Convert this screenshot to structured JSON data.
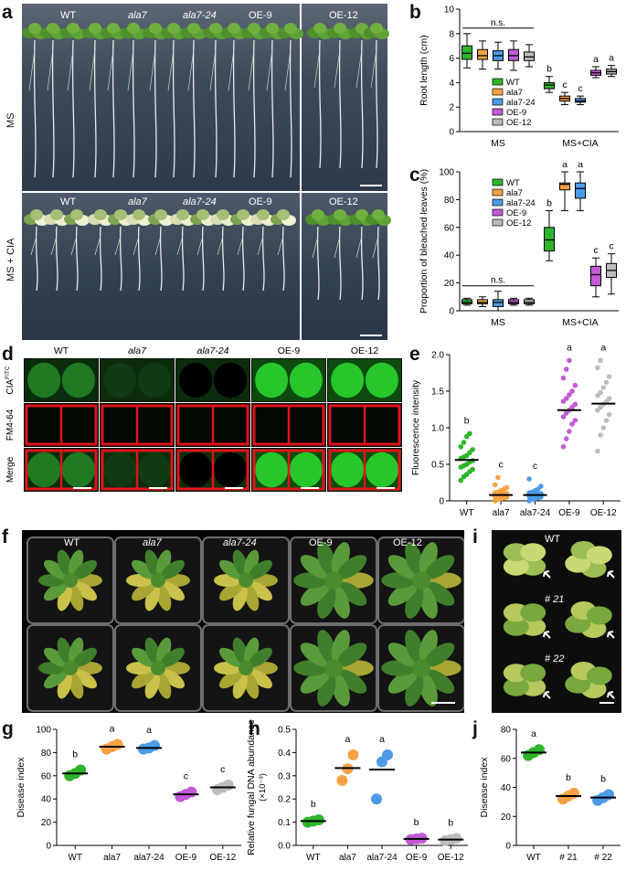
{
  "panel_labels": [
    "a",
    "b",
    "c",
    "d",
    "e",
    "f",
    "g",
    "h",
    "i",
    "j"
  ],
  "genotypes": [
    "WT",
    "ala7",
    "ala7-24",
    "OE-9",
    "OE-12"
  ],
  "panel_a": {
    "rows": [
      "MS",
      "MS + CIA"
    ],
    "columns": [
      "WT",
      "ala7",
      "ala7-24",
      "OE-9",
      "OE-12"
    ]
  },
  "panel_d": {
    "columns": [
      "WT",
      "ala7",
      "ala7-24",
      "OE-9",
      "OE-12"
    ],
    "rows": [
      "CIA",
      "FM4-64",
      "Merge"
    ],
    "row0_sup": "FITC"
  },
  "panel_f": {
    "columns": [
      "WT",
      "ala7",
      "ala7-24",
      "OE-9",
      "OE-12"
    ]
  },
  "panel_i": {
    "labels": [
      "WT",
      "# 21",
      "# 22"
    ]
  },
  "colors": {
    "WT": "#2db52a",
    "ala7": "#f7a144",
    "ala7-24": "#4d9be8",
    "OE-9": "#c25bd6",
    "OE-12": "#bdbdbd"
  },
  "chart_data": [
    {
      "id": "b",
      "type": "box",
      "ylabel": "Root length (cm)",
      "ylim": [
        0,
        10
      ],
      "yticks": [
        0,
        2,
        4,
        6,
        8,
        10
      ],
      "groups": [
        "MS",
        "MS+CIA"
      ],
      "legend": [
        "WT",
        "ala7",
        "ala7-24",
        "OE-9",
        "OE-12"
      ],
      "ns_label": "n.s.",
      "series": [
        {
          "group": "MS",
          "name": "WT",
          "min": 5.2,
          "q1": 5.9,
          "median": 6.4,
          "q3": 7.0,
          "max": 8.0,
          "letter": ""
        },
        {
          "group": "MS",
          "name": "ala7",
          "min": 5.1,
          "q1": 5.9,
          "median": 6.2,
          "q3": 6.7,
          "max": 7.4,
          "letter": ""
        },
        {
          "group": "MS",
          "name": "ala7-24",
          "min": 5.1,
          "q1": 5.8,
          "median": 6.2,
          "q3": 6.6,
          "max": 7.3,
          "letter": ""
        },
        {
          "group": "MS",
          "name": "OE-9",
          "min": 5.0,
          "q1": 5.8,
          "median": 6.2,
          "q3": 6.7,
          "max": 7.4,
          "letter": ""
        },
        {
          "group": "MS",
          "name": "OE-12",
          "min": 5.3,
          "q1": 5.8,
          "median": 6.1,
          "q3": 6.5,
          "max": 7.1,
          "letter": ""
        },
        {
          "group": "MS+CIA",
          "name": "WT",
          "min": 3.2,
          "q1": 3.5,
          "median": 3.8,
          "q3": 4.0,
          "max": 4.5,
          "letter": "b"
        },
        {
          "group": "MS+CIA",
          "name": "ala7",
          "min": 2.2,
          "q1": 2.5,
          "median": 2.7,
          "q3": 2.9,
          "max": 3.2,
          "letter": "c"
        },
        {
          "group": "MS+CIA",
          "name": "ala7-24",
          "min": 2.2,
          "q1": 2.4,
          "median": 2.5,
          "q3": 2.7,
          "max": 2.9,
          "letter": "c"
        },
        {
          "group": "MS+CIA",
          "name": "OE-9",
          "min": 4.4,
          "q1": 4.6,
          "median": 4.8,
          "q3": 5.0,
          "max": 5.3,
          "letter": "a"
        },
        {
          "group": "MS+CIA",
          "name": "OE-12",
          "min": 4.5,
          "q1": 4.7,
          "median": 4.9,
          "q3": 5.1,
          "max": 5.4,
          "letter": "a"
        }
      ]
    },
    {
      "id": "c",
      "type": "box",
      "ylabel": "Proportion of bleached leaves (%)",
      "ylim": [
        0,
        100
      ],
      "yticks": [
        0,
        20,
        40,
        60,
        80,
        100
      ],
      "groups": [
        "MS",
        "MS+CIA"
      ],
      "legend": [
        "WT",
        "ala7",
        "ala7-24",
        "OE-9",
        "OE-12"
      ],
      "ns_label": "n.s.",
      "series": [
        {
          "group": "MS",
          "name": "WT",
          "min": 4,
          "q1": 5,
          "median": 6,
          "q3": 8,
          "max": 9,
          "letter": ""
        },
        {
          "group": "MS",
          "name": "ala7",
          "min": 3,
          "q1": 5,
          "median": 6,
          "q3": 8,
          "max": 10,
          "letter": ""
        },
        {
          "group": "MS",
          "name": "ala7-24",
          "min": 0,
          "q1": 3,
          "median": 6,
          "q3": 8,
          "max": 14,
          "letter": ""
        },
        {
          "group": "MS",
          "name": "OE-9",
          "min": 4,
          "q1": 5,
          "median": 6,
          "q3": 8,
          "max": 9,
          "letter": ""
        },
        {
          "group": "MS",
          "name": "OE-12",
          "min": 4,
          "q1": 5,
          "median": 6,
          "q3": 8,
          "max": 9,
          "letter": ""
        },
        {
          "group": "MS+CIA",
          "name": "WT",
          "min": 36,
          "q1": 43,
          "median": 51,
          "q3": 60,
          "max": 72,
          "letter": "b"
        },
        {
          "group": "MS+CIA",
          "name": "ala7",
          "min": 72,
          "q1": 87,
          "median": 91,
          "q3": 92,
          "max": 100,
          "letter": "a"
        },
        {
          "group": "MS+CIA",
          "name": "ala7-24",
          "min": 72,
          "q1": 81,
          "median": 88,
          "q3": 92,
          "max": 100,
          "letter": "a"
        },
        {
          "group": "MS+CIA",
          "name": "OE-9",
          "min": 10,
          "q1": 18,
          "median": 26,
          "q3": 32,
          "max": 38,
          "letter": "c"
        },
        {
          "group": "MS+CIA",
          "name": "OE-12",
          "min": 12,
          "q1": 24,
          "median": 29,
          "q3": 34,
          "max": 41,
          "letter": "c"
        }
      ]
    },
    {
      "id": "e",
      "type": "scatter",
      "ylabel": "Fluorescence intensity",
      "ylim": [
        0,
        2.0
      ],
      "yticks": [
        "0",
        "0.5",
        "1.0",
        "1.5",
        "2.0"
      ],
      "ytick_values": [
        0,
        0.5,
        1.0,
        1.5,
        2.0
      ],
      "categories": [
        "WT",
        "ala7",
        "ala7-24",
        "OE-9",
        "OE-12"
      ],
      "means": [
        0.56,
        0.08,
        0.08,
        1.24,
        1.33
      ],
      "letters": [
        "b",
        "c",
        "c",
        "a",
        "a"
      ],
      "points": [
        [
          0.28,
          0.33,
          0.36,
          0.4,
          0.43,
          0.46,
          0.48,
          0.5,
          0.53,
          0.55,
          0.58,
          0.6,
          0.62,
          0.66,
          0.7,
          0.74,
          0.8,
          0.88,
          0.92
        ],
        [
          0.0,
          0.02,
          0.03,
          0.04,
          0.05,
          0.06,
          0.07,
          0.08,
          0.09,
          0.1,
          0.11,
          0.12,
          0.14,
          0.16,
          0.18,
          0.22,
          0.32
        ],
        [
          0.0,
          0.02,
          0.03,
          0.04,
          0.05,
          0.06,
          0.07,
          0.08,
          0.09,
          0.1,
          0.11,
          0.12,
          0.14,
          0.16,
          0.2,
          0.3
        ],
        [
          0.74,
          0.85,
          0.95,
          1.05,
          1.1,
          1.15,
          1.2,
          1.24,
          1.28,
          1.32,
          1.36,
          1.4,
          1.45,
          1.5,
          1.58,
          1.68,
          1.8,
          1.92
        ],
        [
          0.68,
          0.9,
          1.0,
          1.1,
          1.18,
          1.24,
          1.28,
          1.32,
          1.36,
          1.4,
          1.44,
          1.48,
          1.55,
          1.62,
          1.7,
          1.82,
          1.92
        ]
      ]
    },
    {
      "id": "g",
      "type": "scatter",
      "ylabel": "Disease index",
      "ylim": [
        0,
        100
      ],
      "yticks": [
        "0",
        "20",
        "40",
        "60",
        "80",
        "100"
      ],
      "ytick_values": [
        0,
        20,
        40,
        60,
        80,
        100
      ],
      "categories": [
        "WT",
        "ala7",
        "ala7-24",
        "OE-9",
        "OE-12"
      ],
      "means": [
        62,
        85,
        84,
        44,
        50
      ],
      "letters": [
        "b",
        "a",
        "a",
        "c",
        "c"
      ],
      "points": [
        [
          60,
          62,
          65
        ],
        [
          83,
          85,
          87
        ],
        [
          83,
          84,
          86
        ],
        [
          42,
          44,
          46
        ],
        [
          48,
          50,
          52
        ]
      ]
    },
    {
      "id": "h",
      "type": "scatter",
      "ylabel": "Relative fungal DNA abundance",
      "ylabel2": "(×10⁻³)",
      "ylim": [
        0,
        0.5
      ],
      "yticks": [
        "0.0",
        "0.1",
        "0.2",
        "0.3",
        "0.4",
        "0.5"
      ],
      "ytick_values": [
        0,
        0.1,
        0.2,
        0.3,
        0.4,
        0.5
      ],
      "categories": [
        "WT",
        "ala7",
        "ala7-24",
        "OE-9",
        "OE-12"
      ],
      "means": [
        0.105,
        0.333,
        0.327,
        0.028,
        0.025
      ],
      "letters": [
        "b",
        "a",
        "a",
        "b",
        "b"
      ],
      "points": [
        [
          0.1,
          0.105,
          0.11
        ],
        [
          0.28,
          0.33,
          0.39
        ],
        [
          0.2,
          0.36,
          0.39
        ],
        [
          0.025,
          0.028,
          0.031
        ],
        [
          0.02,
          0.025,
          0.03
        ]
      ]
    },
    {
      "id": "j",
      "type": "scatter",
      "ylabel": "Disease index",
      "ylim": [
        0,
        80
      ],
      "yticks": [
        "0",
        "20",
        "40",
        "60",
        "80"
      ],
      "ytick_values": [
        0,
        20,
        40,
        60,
        80
      ],
      "categories": [
        "WT",
        "# 21",
        "# 22"
      ],
      "means": [
        64,
        34,
        33
      ],
      "letters": [
        "a",
        "b",
        "b"
      ],
      "points": [
        [
          62,
          64,
          66
        ],
        [
          32,
          34,
          36
        ],
        [
          31,
          33,
          35
        ]
      ],
      "colors": [
        "#2db52a",
        "#f7a144",
        "#4d9be8"
      ]
    }
  ]
}
